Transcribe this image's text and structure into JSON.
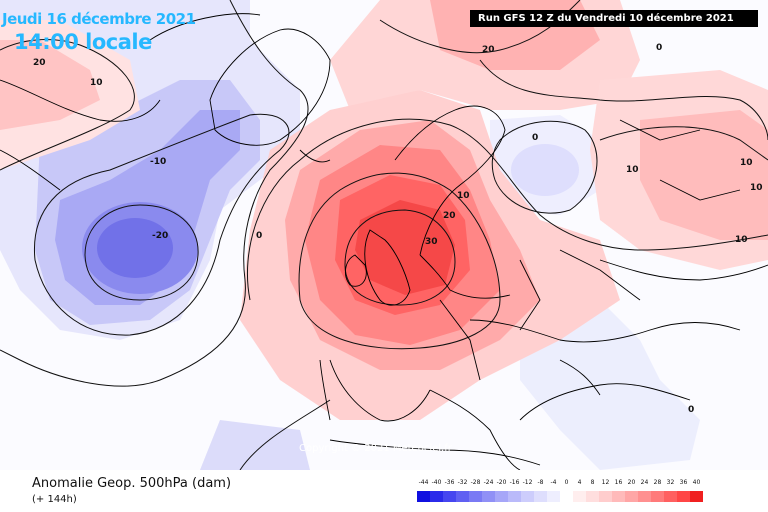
{
  "header": {
    "date": "Jeudi 16 décembre 2021",
    "time": "14:00 locale",
    "run": "Run GFS 12 Z du Vendredi 10 décembre 2021"
  },
  "map": {
    "copyright": "Copyright © 2021 Meteociel.fr",
    "contour_labels": [
      "20",
      "10",
      "-10",
      "-20",
      "0",
      "20",
      "0",
      "10",
      "20",
      "30",
      "10",
      "10",
      "0",
      "10",
      "10",
      "0"
    ]
  },
  "footer": {
    "variable": "Anomalie Geop. 500hPa (dam)",
    "lead": "(+ 144h)"
  },
  "legend": {
    "labels": [
      "-44",
      "-40",
      "-36",
      "-32",
      "-28",
      "-24",
      "-20",
      "-16",
      "-12",
      "-8",
      "-4",
      "0",
      "4",
      "8",
      "12",
      "16",
      "20",
      "24",
      "28",
      "32",
      "36",
      "40"
    ],
    "colors": [
      "#1010e0",
      "#2b2bea",
      "#4646f0",
      "#6060f2",
      "#7a7af4",
      "#9090f6",
      "#a6a6f8",
      "#babafa",
      "#cdcdfc",
      "#dedefd",
      "#eeeefe",
      "#ffffff",
      "#ffeeee",
      "#ffdede",
      "#ffcdcd",
      "#ffbaba",
      "#ffa6a6",
      "#ff9090",
      "#ff7a7a",
      "#ff6060",
      "#ff4646",
      "#f02020"
    ]
  }
}
